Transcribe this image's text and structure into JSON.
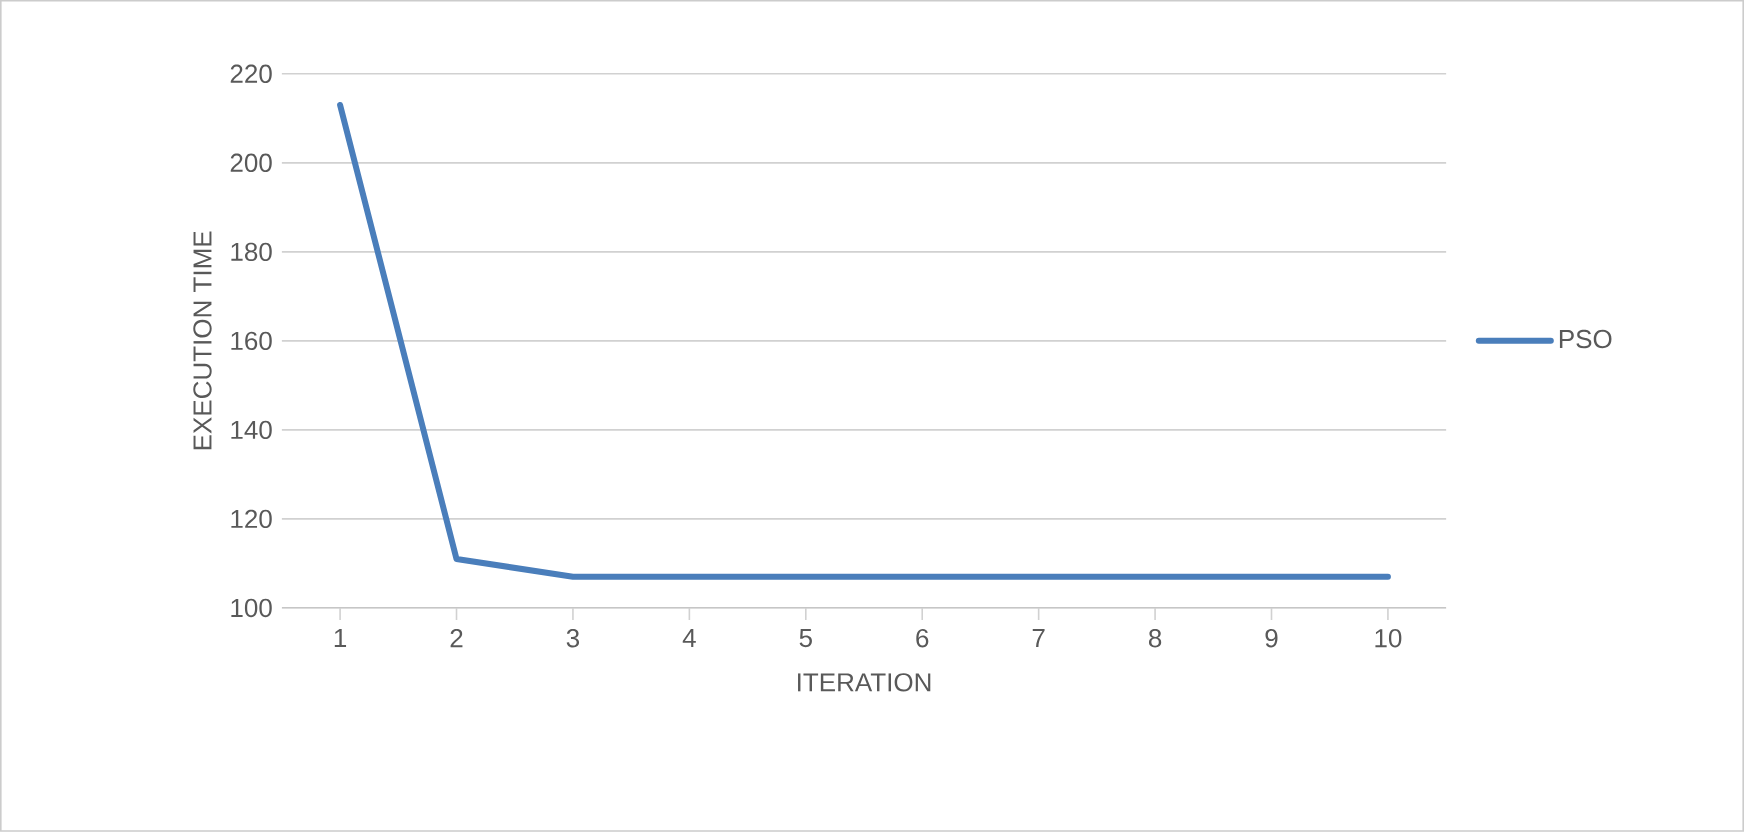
{
  "chart_data": {
    "type": "line",
    "xlabel": "ITERATION",
    "ylabel": "EXECUTION TIME",
    "categories": [
      "1",
      "2",
      "3",
      "4",
      "5",
      "6",
      "7",
      "8",
      "9",
      "10"
    ],
    "series": [
      {
        "name": "PSO",
        "color": "#4a7ebb",
        "values": [
          213,
          111,
          107,
          107,
          107,
          107,
          107,
          107,
          107,
          107
        ]
      }
    ],
    "ylim": [
      100,
      220
    ],
    "yticks": [
      100,
      120,
      140,
      160,
      180,
      200,
      220
    ],
    "grid": "y",
    "legend": "right"
  }
}
